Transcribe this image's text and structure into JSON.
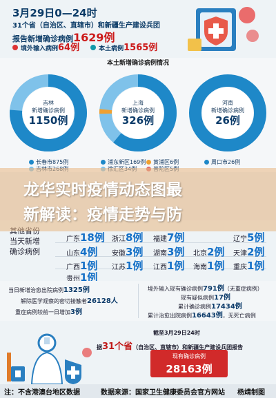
{
  "header": {
    "line1": "3月29日0—24时",
    "line2": "31个省（自治区、直辖市）和新疆生产建设兵团",
    "line3_prefix": "报告新增确诊病例",
    "line3_num": "1629例",
    "imported_label": "境外输入病例",
    "imported_num": "64例",
    "local_label": "本土病例",
    "local_num": "1565例"
  },
  "section_title": "本土新增确诊病例情况",
  "donuts": [
    {
      "name": "吉林",
      "label": "新增确诊病例",
      "num": "1150例"
    },
    {
      "name": "上海",
      "label": "新增确诊病例",
      "num": "326例"
    },
    {
      "name": "河南",
      "label": "新增确诊病例",
      "num": "26例"
    }
  ],
  "legend": [
    {
      "text": "长春市875例",
      "color": "#1e88c8"
    },
    {
      "text": "吉林市268例",
      "color": "#7fc2ea"
    },
    {
      "text": "浦东新区169例",
      "color": "#1e88c8"
    },
    {
      "text": "徐汇区34例",
      "color": "#7fc2ea"
    },
    {
      "text": "黄浦区6例",
      "color": "#f0a030"
    },
    {
      "text": "普陀区5例",
      "color": "#e06a6a"
    },
    {
      "text": "周口市26例",
      "color": "#1e88c8"
    }
  ],
  "banner": {
    "t1": "龙华实时疫情动态图最",
    "t2": "新解读：疫情走势与防"
  },
  "other": {
    "label_lines": [
      "其他省份",
      "当天新增",
      "确诊病例"
    ],
    "rows": [
      [
        {
          "p": "广东",
          "n": "18例"
        },
        {
          "p": "浙江",
          "n": "8例"
        },
        {
          "p": "福建",
          "n": "7例"
        },
        {
          "p": "辽宁",
          "n": "5例"
        }
      ],
      [
        {
          "p": "山东",
          "n": "4例"
        },
        {
          "p": "安徽",
          "n": "3例"
        },
        {
          "p": "湖南",
          "n": "3例"
        },
        {
          "p": "北京",
          "n": "2例"
        },
        {
          "p": "天津",
          "n": "2例"
        }
      ],
      [
        {
          "p": "广西",
          "n": "1例"
        },
        {
          "p": "江苏",
          "n": "1例"
        },
        {
          "p": "江西",
          "n": "1例"
        },
        {
          "p": "海南",
          "n": "1例"
        },
        {
          "p": "重庆",
          "n": "1例"
        }
      ],
      [
        {
          "p": "贵州",
          "n": "1例"
        }
      ]
    ]
  },
  "stats_left": [
    {
      "t": "当日新增治愈出院病例",
      "n": "1325例"
    },
    {
      "t": "解除医学观察的密切接触者",
      "n": "26128人"
    },
    {
      "t": "重症病例较前一日增加",
      "n": "3例"
    }
  ],
  "stats_right": [
    {
      "t": "境外输入现有确诊病例",
      "n": "791例",
      "s": "（无重症病例）"
    },
    {
      "t": "现有疑似病例",
      "n": "17例",
      "s": ""
    },
    {
      "t": "累计确诊病例",
      "n": "17434例",
      "s": ""
    },
    {
      "t": "累计治愈出院病例",
      "n": "16643例",
      "s": "，无死亡病例"
    }
  ],
  "bottom": {
    "line1": "截至3月29日24时",
    "line2_prefix": "据",
    "line2_num": "31个省",
    "line2_suffix": "（自治区、直辖市）和新疆生产建设兵团报告",
    "box_label": "现有确诊病例",
    "box_num": "28163例"
  },
  "footer": {
    "note": "注：不含港澳台地区数据",
    "source": "数据来源：国家卫生健康委员会官方网站",
    "author": "杨靖制图"
  }
}
